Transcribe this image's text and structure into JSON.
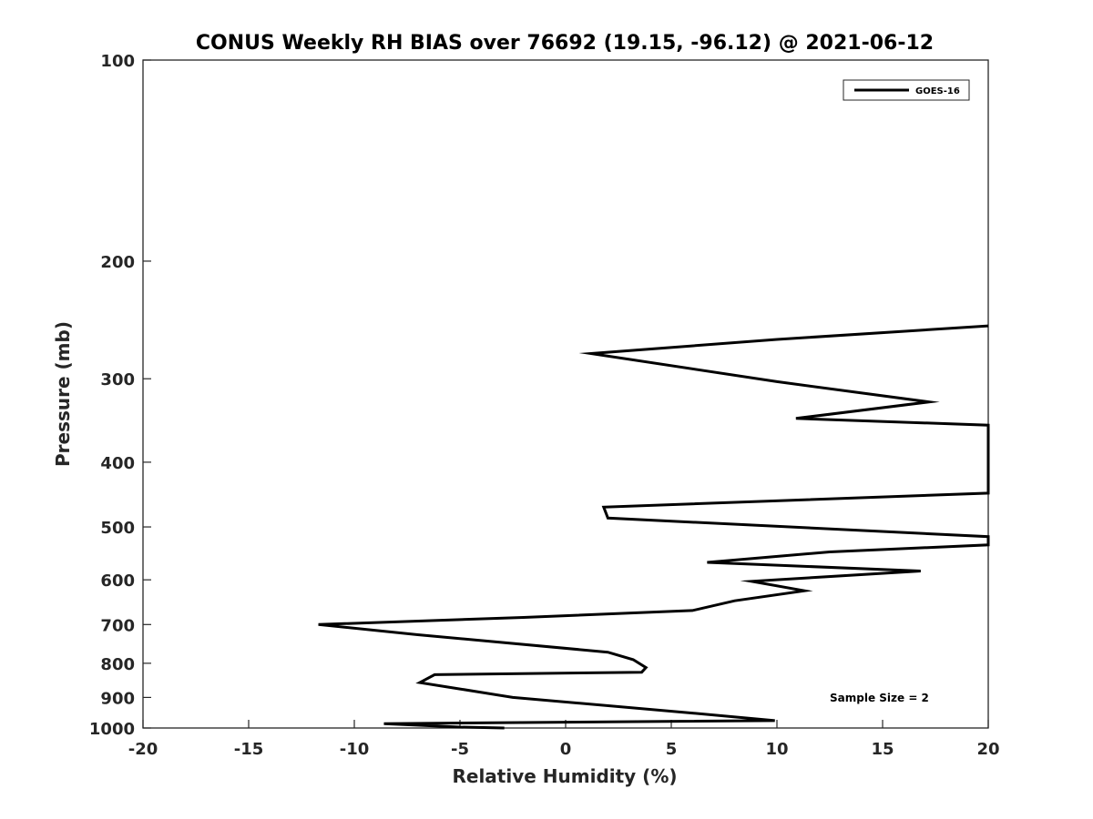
{
  "chart_data": {
    "type": "line",
    "title": "CONUS Weekly RH BIAS over 76692 (19.15, -96.12) @ 2021-06-12",
    "xlabel": "Relative Humidity (%)",
    "ylabel": "Pressure (mb)",
    "xlim": [
      -20,
      20
    ],
    "ylim": [
      100,
      1000
    ],
    "y_scale": "log",
    "y_reversed": true,
    "xticks": [
      -20,
      -15,
      -10,
      -5,
      0,
      5,
      10,
      15,
      20
    ],
    "xtick_labels": [
      "-20",
      "-15",
      "-10",
      "-5",
      "0",
      "5",
      "10",
      "15",
      "20"
    ],
    "yticks": [
      100,
      200,
      300,
      400,
      500,
      600,
      700,
      800,
      900,
      1000
    ],
    "ytick_labels": [
      "100",
      "200",
      "300",
      "400",
      "500",
      "600",
      "700",
      "800",
      "900",
      "1000"
    ],
    "grid": false,
    "legend_position": "top-right",
    "annotation": "Sample Size = 2",
    "series": [
      {
        "name": "GOES-16",
        "color": "#000000",
        "points": [
          {
            "x": 20.0,
            "y": 250
          },
          {
            "x": 10.0,
            "y": 262
          },
          {
            "x": 1.2,
            "y": 275
          },
          {
            "x": 10.0,
            "y": 303
          },
          {
            "x": 17.2,
            "y": 325
          },
          {
            "x": 10.9,
            "y": 344
          },
          {
            "x": 20.0,
            "y": 352
          },
          {
            "x": 20.0,
            "y": 445
          },
          {
            "x": 1.8,
            "y": 467
          },
          {
            "x": 2.0,
            "y": 485
          },
          {
            "x": 20.0,
            "y": 517
          },
          {
            "x": 20.0,
            "y": 532
          },
          {
            "x": 12.5,
            "y": 545
          },
          {
            "x": 6.7,
            "y": 565
          },
          {
            "x": 16.8,
            "y": 582
          },
          {
            "x": 8.8,
            "y": 603
          },
          {
            "x": 11.3,
            "y": 623
          },
          {
            "x": 8.0,
            "y": 645
          },
          {
            "x": 6.0,
            "y": 667
          },
          {
            "x": -2.0,
            "y": 683
          },
          {
            "x": -11.7,
            "y": 700
          },
          {
            "x": -7.0,
            "y": 725
          },
          {
            "x": 2.0,
            "y": 770
          },
          {
            "x": 3.2,
            "y": 790
          },
          {
            "x": 3.8,
            "y": 812
          },
          {
            "x": 3.6,
            "y": 825
          },
          {
            "x": -6.2,
            "y": 832
          },
          {
            "x": -6.9,
            "y": 855
          },
          {
            "x": -5.0,
            "y": 874
          },
          {
            "x": -2.5,
            "y": 900
          },
          {
            "x": 6.0,
            "y": 950
          },
          {
            "x": 9.9,
            "y": 975
          },
          {
            "x": 0.0,
            "y": 980
          },
          {
            "x": -8.6,
            "y": 985
          },
          {
            "x": -5.0,
            "y": 997
          },
          {
            "x": -2.9,
            "y": 1000
          }
        ]
      }
    ]
  }
}
